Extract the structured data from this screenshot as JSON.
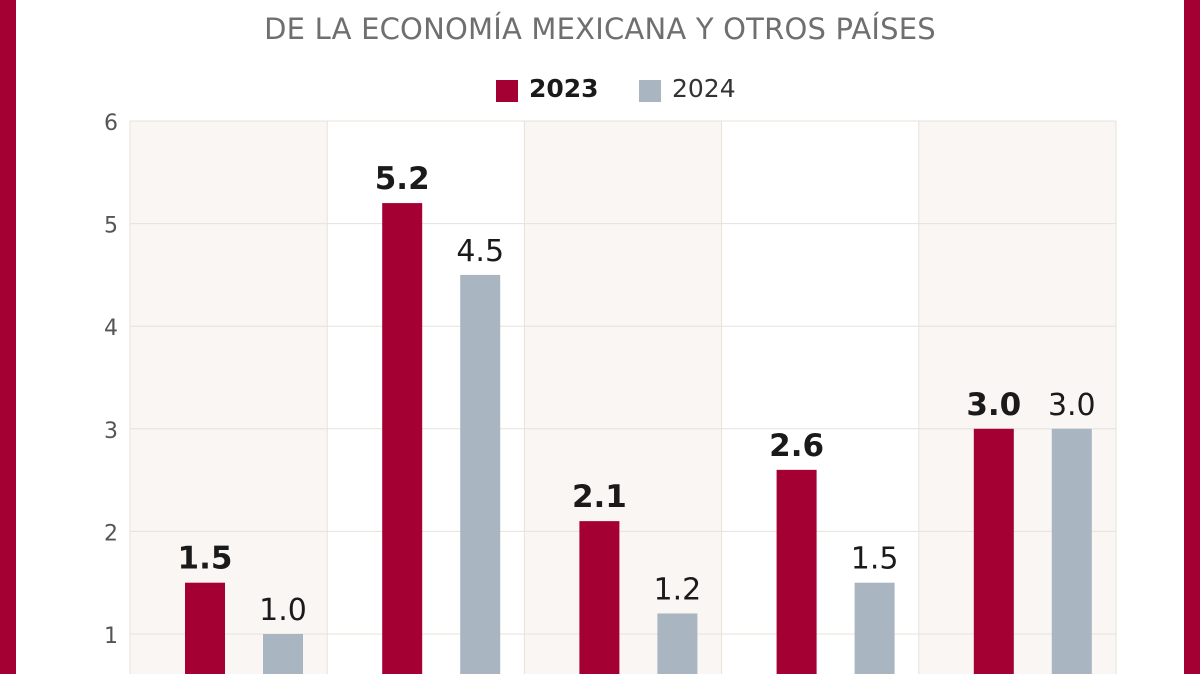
{
  "chart_data": {
    "type": "bar",
    "title": "… DE LA ECONOMÍA MEXICANA Y OTROS PAÍSES",
    "title_lines": [
      "",
      "DE LA ECONOMÍA MEXICANA Y OTROS PAÍSES"
    ],
    "categories": [
      "",
      "",
      "",
      "",
      ""
    ],
    "series": [
      {
        "name": "2023",
        "color": "#a50034",
        "values": [
          1.5,
          5.2,
          2.1,
          2.6,
          3.0
        ],
        "labels": [
          "1.5",
          "5.2",
          "2.1",
          "2.6",
          "3.0"
        ]
      },
      {
        "name": "2024",
        "color": "#a9b5c1",
        "values": [
          1.0,
          4.5,
          1.2,
          1.5,
          3.0
        ],
        "labels": [
          "1.0",
          "4.5",
          "1.2",
          "1.5",
          "3.0"
        ]
      }
    ],
    "yticks": [
      "1",
      "2",
      "3",
      "4",
      "5",
      "6"
    ],
    "ylim": [
      0,
      6
    ],
    "grid": true,
    "band_colors": [
      "#f9f6f3",
      "#ffffff"
    ]
  },
  "colors": {
    "frame": "#a50034",
    "title_text": "#6f6f6f",
    "gridline": "#e8e1da",
    "label_text": "#1a1a1a"
  }
}
